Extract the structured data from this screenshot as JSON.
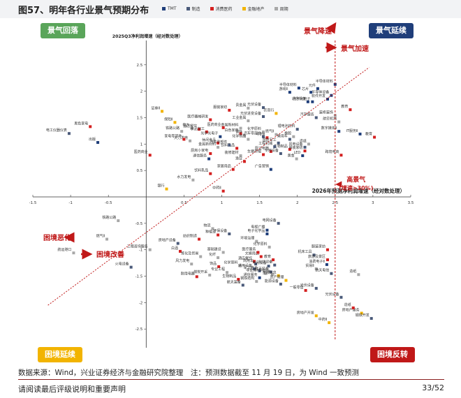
{
  "page": {
    "title": "图57、明年各行业景气预期分布",
    "source": "数据来源：Wind，兴业证券经济与金融研究院整理　注：预测数据截至 11 月 19 日，为 Wind 一致预测",
    "footer_left": "请阅读最后评级说明和重要声明",
    "footer_right": "33/52"
  },
  "quadrants": {
    "top_left": {
      "label": "景气回落",
      "color": "#5aa55a"
    },
    "top_right": {
      "label": "景气延续",
      "color": "#1f3e7a"
    },
    "bottom_left": {
      "label": "困境延续",
      "color": "#f2b400"
    },
    "bottom_right": {
      "label": "困境反转",
      "color": "#c01818"
    }
  },
  "arrows": {
    "up": "景气降速",
    "right": "景气加速",
    "left": "困境恶化",
    "bottom": "困境改善"
  },
  "threshold": {
    "label_line1": "高景气",
    "label_line2": "(增速>30%)",
    "x": 2.5
  },
  "chart_data": {
    "type": "scatter",
    "xlabel": "2026年预测净利润增速（经对数处理）",
    "ylabel": "2025Q3净利润增速（经对数处理）",
    "xlim": [
      -1.5,
      3.5
    ],
    "ylim": [
      -2.5,
      2.5
    ],
    "xticks": [
      -1.5,
      -1,
      -0.5,
      0.5,
      1,
      1.5,
      2,
      2.5,
      3,
      3.5
    ],
    "yticks": [
      -2.5,
      -2,
      -1.5,
      -1,
      -0.5,
      0.5,
      1,
      1.5,
      2,
      2.5
    ],
    "series": [
      {
        "name": "TMT",
        "color": "#1f3e7a"
      },
      {
        "name": "制造",
        "color": "#4a5a7a"
      },
      {
        "name": "消费医药",
        "color": "#d42020"
      },
      {
        "name": "金融地产",
        "color": "#f2b400"
      },
      {
        "name": "周期",
        "color": "#a8a8a8"
      }
    ],
    "points": [
      {
        "label": "半导体材料",
        "x": 2.5,
        "y": 2.13,
        "s": 0
      },
      {
        "label": "半导体设备",
        "x": 2.45,
        "y": 1.92,
        "s": 0
      },
      {
        "label": "半导体材料",
        "x": 2.02,
        "y": 2.06,
        "s": 0
      },
      {
        "label": "元件",
        "x": 2.27,
        "y": 2.05,
        "s": 0
      },
      {
        "label": "芯片",
        "x": 2.18,
        "y": 1.98,
        "s": 0
      },
      {
        "label": "软件开发",
        "x": 2.4,
        "y": 1.85,
        "s": 0
      },
      {
        "label": "游戏Ⅱ",
        "x": 1.9,
        "y": 1.98,
        "s": 0
      },
      {
        "label": "光学光电子",
        "x": 2.2,
        "y": 1.8,
        "s": 0
      },
      {
        "label": "通信设备",
        "x": 2.14,
        "y": 1.8,
        "s": 0
      },
      {
        "label": "汽车服务",
        "x": 2.25,
        "y": 1.5,
        "s": 1
      },
      {
        "label": "航空机场",
        "x": 2.55,
        "y": 1.42,
        "s": 4
      },
      {
        "label": "装修装饰",
        "x": 2.5,
        "y": 1.54,
        "s": 4
      },
      {
        "label": "教育",
        "x": 2.7,
        "y": 1.65,
        "s": 2
      },
      {
        "label": "数字媒体Ⅱ",
        "x": 2.55,
        "y": 1.24,
        "s": 0
      },
      {
        "label": "IT服务Ⅱ",
        "x": 2.83,
        "y": 1.19,
        "s": 0
      },
      {
        "label": "教育",
        "x": 3.02,
        "y": 1.13,
        "s": 2
      },
      {
        "label": "贵金属",
        "x": 1.35,
        "y": 1.68,
        "s": 4
      },
      {
        "label": "服装家纺",
        "x": 1.1,
        "y": 1.64,
        "s": 2
      },
      {
        "label": "光伏设备",
        "x": 1.55,
        "y": 1.69,
        "s": 1
      },
      {
        "label": "农商行",
        "x": 1.72,
        "y": 1.58,
        "s": 3
      },
      {
        "label": "光伏进变设备",
        "x": 1.55,
        "y": 1.52,
        "s": 1
      },
      {
        "label": "工业金属",
        "x": 1.35,
        "y": 1.44,
        "s": 4
      },
      {
        "label": "金属新材料",
        "x": 1.25,
        "y": 1.3,
        "s": 4
      },
      {
        "label": "医疗器械研发",
        "x": 0.85,
        "y": 1.46,
        "s": 2
      },
      {
        "label": "酒店餐饮",
        "x": 0.7,
        "y": 1.28,
        "s": 2
      },
      {
        "label": "医药商业",
        "x": 1.02,
        "y": 1.31,
        "s": 2
      },
      {
        "label": "白色家电",
        "x": 1.25,
        "y": 1.2,
        "s": 2
      },
      {
        "label": "化学原料",
        "x": 1.55,
        "y": 1.23,
        "s": 4
      },
      {
        "label": "钢铁",
        "x": 1.3,
        "y": 1.17,
        "s": 4
      },
      {
        "label": "锂电池材料",
        "x": 2.0,
        "y": 1.28,
        "s": 1
      },
      {
        "label": "汽车零部件",
        "x": 1.55,
        "y": 1.14,
        "s": 1
      },
      {
        "label": "化学制品",
        "x": 1.35,
        "y": 1.09,
        "s": 4
      },
      {
        "label": "证券Ⅱ",
        "x": 0.21,
        "y": 1.62,
        "s": 3
      },
      {
        "label": "保险Ⅱ",
        "x": 0.38,
        "y": 1.41,
        "s": 3
      },
      {
        "label": "铁路公路",
        "x": 0.47,
        "y": 1.24,
        "s": 4
      },
      {
        "label": "电力",
        "x": 0.6,
        "y": 1.3,
        "s": 4
      },
      {
        "label": "食品加工",
        "x": 0.8,
        "y": 1.23,
        "s": 2
      },
      {
        "label": "光学光电子",
        "x": 0.98,
        "y": 1.14,
        "s": 0
      },
      {
        "label": "火力发电",
        "x": 0.58,
        "y": 1.06,
        "s": 4
      },
      {
        "label": "休闲食品",
        "x": 0.95,
        "y": 1.02,
        "s": 2
      },
      {
        "label": "金属新材料",
        "x": 0.95,
        "y": 0.94,
        "s": 4
      },
      {
        "label": "饮料乳品",
        "x": 1.2,
        "y": 0.92,
        "s": 2
      },
      {
        "label": "家电零部件",
        "x": 0.5,
        "y": 1.09,
        "s": 2
      },
      {
        "label": "汽车零部件",
        "x": 1.1,
        "y": 0.98,
        "s": 1
      },
      {
        "label": "乘用车",
        "x": 1.9,
        "y": 1.09,
        "s": 1
      },
      {
        "label": "橡胶",
        "x": 1.95,
        "y": 1.14,
        "s": 4
      },
      {
        "label": "造纸",
        "x": 2.15,
        "y": 1.0,
        "s": 4
      },
      {
        "label": "生物制品",
        "x": 1.9,
        "y": 0.9,
        "s": 2
      },
      {
        "label": "风电设备",
        "x": 2.1,
        "y": 0.94,
        "s": 1
      },
      {
        "label": "LED",
        "x": 2.07,
        "y": 0.78,
        "s": 0
      },
      {
        "label": "服装家纺",
        "x": 2.1,
        "y": 0.87,
        "s": 2
      },
      {
        "label": "燃气Ⅱ",
        "x": 1.72,
        "y": 1.18,
        "s": 4
      },
      {
        "label": "中药Ⅱ",
        "x": 1.6,
        "y": 1.12,
        "s": 2
      },
      {
        "label": "国防军工",
        "x": 1.75,
        "y": 1.02,
        "s": 1
      },
      {
        "label": "厨卫电器",
        "x": 1.65,
        "y": 0.86,
        "s": 2
      },
      {
        "label": "生猪养殖",
        "x": 1.55,
        "y": 0.8,
        "s": 2
      },
      {
        "label": "工程机械",
        "x": 1.7,
        "y": 0.95,
        "s": 1
      },
      {
        "label": "专用设备",
        "x": 1.78,
        "y": 0.82,
        "s": 1
      },
      {
        "label": "厨房小家电",
        "x": 0.85,
        "y": 0.82,
        "s": 2
      },
      {
        "label": "通信服务",
        "x": 0.83,
        "y": 0.72,
        "s": 0
      },
      {
        "label": "装修建材",
        "x": 1.25,
        "y": 0.78,
        "s": 4
      },
      {
        "label": "渔业",
        "x": 1.3,
        "y": 0.67,
        "s": 2
      },
      {
        "label": "家居用品",
        "x": 1.15,
        "y": 0.52,
        "s": 2
      },
      {
        "label": "饮料乳品",
        "x": 0.85,
        "y": 0.44,
        "s": 2
      },
      {
        "label": "广告营销",
        "x": 1.65,
        "y": 0.52,
        "s": 0
      },
      {
        "label": "黄金",
        "x": 1.99,
        "y": 0.72,
        "s": 4
      },
      {
        "label": "跨境电商",
        "x": 2.58,
        "y": 0.79,
        "s": 2
      },
      {
        "label": "医药商业",
        "x": 0.05,
        "y": 0.79,
        "s": 2
      },
      {
        "label": "水力发电",
        "x": 0.62,
        "y": 0.32,
        "s": 4
      },
      {
        "label": "银行",
        "x": 0.27,
        "y": 0.15,
        "s": 3
      },
      {
        "label": "黑色家电",
        "x": -0.74,
        "y": 1.33,
        "s": 2
      },
      {
        "label": "电工仪器仪表",
        "x": -1.02,
        "y": 1.2,
        "s": 1
      },
      {
        "label": "出版",
        "x": -0.64,
        "y": 1.03,
        "s": 0
      },
      {
        "label": "中药Ⅱ",
        "x": 1.02,
        "y": 0.11,
        "s": 2
      },
      {
        "label": "铁路公路",
        "x": -0.37,
        "y": -0.45,
        "s": 4
      },
      {
        "label": "燃气Ⅱ",
        "x": -0.52,
        "y": -0.8,
        "s": 4
      },
      {
        "label": "航运港口",
        "x": -0.96,
        "y": -1.06,
        "s": 4
      },
      {
        "label": "工程咨询服务",
        "x": 0.05,
        "y": -1.0,
        "s": 4
      },
      {
        "label": "火电设备",
        "x": -0.2,
        "y": -1.33,
        "s": 1
      },
      {
        "label": "物流",
        "x": 0.88,
        "y": -0.6,
        "s": 4
      },
      {
        "label": "环保设备",
        "x": 1.1,
        "y": -0.7,
        "s": 1
      },
      {
        "label": "种植业",
        "x": 0.95,
        "y": -0.72,
        "s": 2
      },
      {
        "label": "纺织制造",
        "x": 0.7,
        "y": -0.8,
        "s": 2
      },
      {
        "label": "房地产设备",
        "x": 0.42,
        "y": -0.88,
        "s": 1
      },
      {
        "label": "白酒",
        "x": 0.45,
        "y": -1.03,
        "s": 2
      },
      {
        "label": "基础建设",
        "x": 1.02,
        "y": -1.05,
        "s": 4
      },
      {
        "label": "炼化及贸易",
        "x": 0.72,
        "y": -1.13,
        "s": 4
      },
      {
        "label": "化纤",
        "x": 0.95,
        "y": -1.15,
        "s": 4
      },
      {
        "label": "风力发电",
        "x": 0.6,
        "y": -1.27,
        "s": 4
      },
      {
        "label": "饰品",
        "x": 0.96,
        "y": -1.32,
        "s": 2
      },
      {
        "label": "专业工程",
        "x": 1.07,
        "y": -1.43,
        "s": 4
      },
      {
        "label": "化学原料",
        "x": 1.24,
        "y": -1.3,
        "s": 4
      },
      {
        "label": "煤炭开采",
        "x": 0.84,
        "y": -1.48,
        "s": 4
      },
      {
        "label": "耐用电器",
        "x": 0.67,
        "y": -1.51,
        "s": 2
      },
      {
        "label": "生物制品",
        "x": 1.22,
        "y": -1.56,
        "s": 2
      },
      {
        "label": "军工电子",
        "x": 1.5,
        "y": -1.4,
        "s": 1
      },
      {
        "label": "文娱用品",
        "x": 1.52,
        "y": -1.13,
        "s": 2
      },
      {
        "label": "医疗服务",
        "x": 1.48,
        "y": -1.05,
        "s": 2
      },
      {
        "label": "酒店餐饮",
        "x": 1.43,
        "y": -1.22,
        "s": 2
      },
      {
        "label": "商用车",
        "x": 1.45,
        "y": -1.27,
        "s": 1
      },
      {
        "label": "通用设备",
        "x": 1.43,
        "y": -1.36,
        "s": 1
      },
      {
        "label": "教育",
        "x": 1.68,
        "y": -1.19,
        "s": 2
      },
      {
        "label": "电网设备",
        "x": 1.62,
        "y": -1.31,
        "s": 1
      },
      {
        "label": "光伏设备",
        "x": 1.7,
        "y": -1.29,
        "s": 1
      },
      {
        "label": "航天装备",
        "x": 1.65,
        "y": -1.42,
        "s": 1
      },
      {
        "label": "综合",
        "x": 1.67,
        "y": -1.47,
        "s": 4
      },
      {
        "label": "非金属材料",
        "x": 1.58,
        "y": -1.45,
        "s": 4
      },
      {
        "label": "金融信息",
        "x": 1.75,
        "y": -1.49,
        "s": 3
      },
      {
        "label": "通信服务",
        "x": 1.5,
        "y": -1.53,
        "s": 0
      },
      {
        "label": "钢铁结构",
        "x": 1.46,
        "y": -1.6,
        "s": 4
      },
      {
        "label": "航天装备",
        "x": 1.28,
        "y": -1.67,
        "s": 1
      },
      {
        "label": "资产管理",
        "x": 1.85,
        "y": -1.58,
        "s": 3
      },
      {
        "label": "能源设备",
        "x": 1.78,
        "y": -1.65,
        "s": 1
      },
      {
        "label": "环境治理",
        "x": 1.46,
        "y": -0.84,
        "s": 4
      },
      {
        "label": "电子化学品",
        "x": 1.6,
        "y": -0.7,
        "s": 0
      },
      {
        "label": "电视广播",
        "x": 1.6,
        "y": -0.63,
        "s": 0
      },
      {
        "label": "电网设备",
        "x": 1.75,
        "y": -0.5,
        "s": 1
      },
      {
        "label": "化学原料",
        "x": 1.63,
        "y": -0.95,
        "s": 4
      },
      {
        "label": "服装家纺",
        "x": 2.4,
        "y": -1.0,
        "s": 2
      },
      {
        "label": "机床工具",
        "x": 2.22,
        "y": -1.1,
        "s": 1
      },
      {
        "label": "旅游及景区",
        "x": 2.4,
        "y": -1.19,
        "s": 2
      },
      {
        "label": "消费电子Ⅱ",
        "x": 2.39,
        "y": -1.28,
        "s": 0
      },
      {
        "label": "贸易Ⅱ",
        "x": 2.25,
        "y": -1.36,
        "s": 4
      },
      {
        "label": "光伏设备",
        "x": 2.25,
        "y": -1.73,
        "s": 1
      },
      {
        "label": "航天电信",
        "x": 2.45,
        "y": -1.45,
        "s": 1
      },
      {
        "label": "一般零售",
        "x": 2.11,
        "y": -1.77,
        "s": 2
      },
      {
        "label": "光伏设备",
        "x": 2.58,
        "y": -1.9,
        "s": 1
      },
      {
        "label": "造纸",
        "x": 2.81,
        "y": -1.47,
        "s": 4
      },
      {
        "label": "房地产服务",
        "x": 2.85,
        "y": -2.2,
        "s": 3
      },
      {
        "label": "房地产开发",
        "x": 2.25,
        "y": -2.25,
        "s": 3
      },
      {
        "label": "钢铁开发",
        "x": 2.98,
        "y": -2.3,
        "s": 1
      },
      {
        "label": "造纸",
        "x": 2.74,
        "y": -2.1,
        "s": 2
      },
      {
        "label": "中药Ⅱ",
        "x": 2.42,
        "y": -2.38,
        "s": 3
      }
    ]
  }
}
